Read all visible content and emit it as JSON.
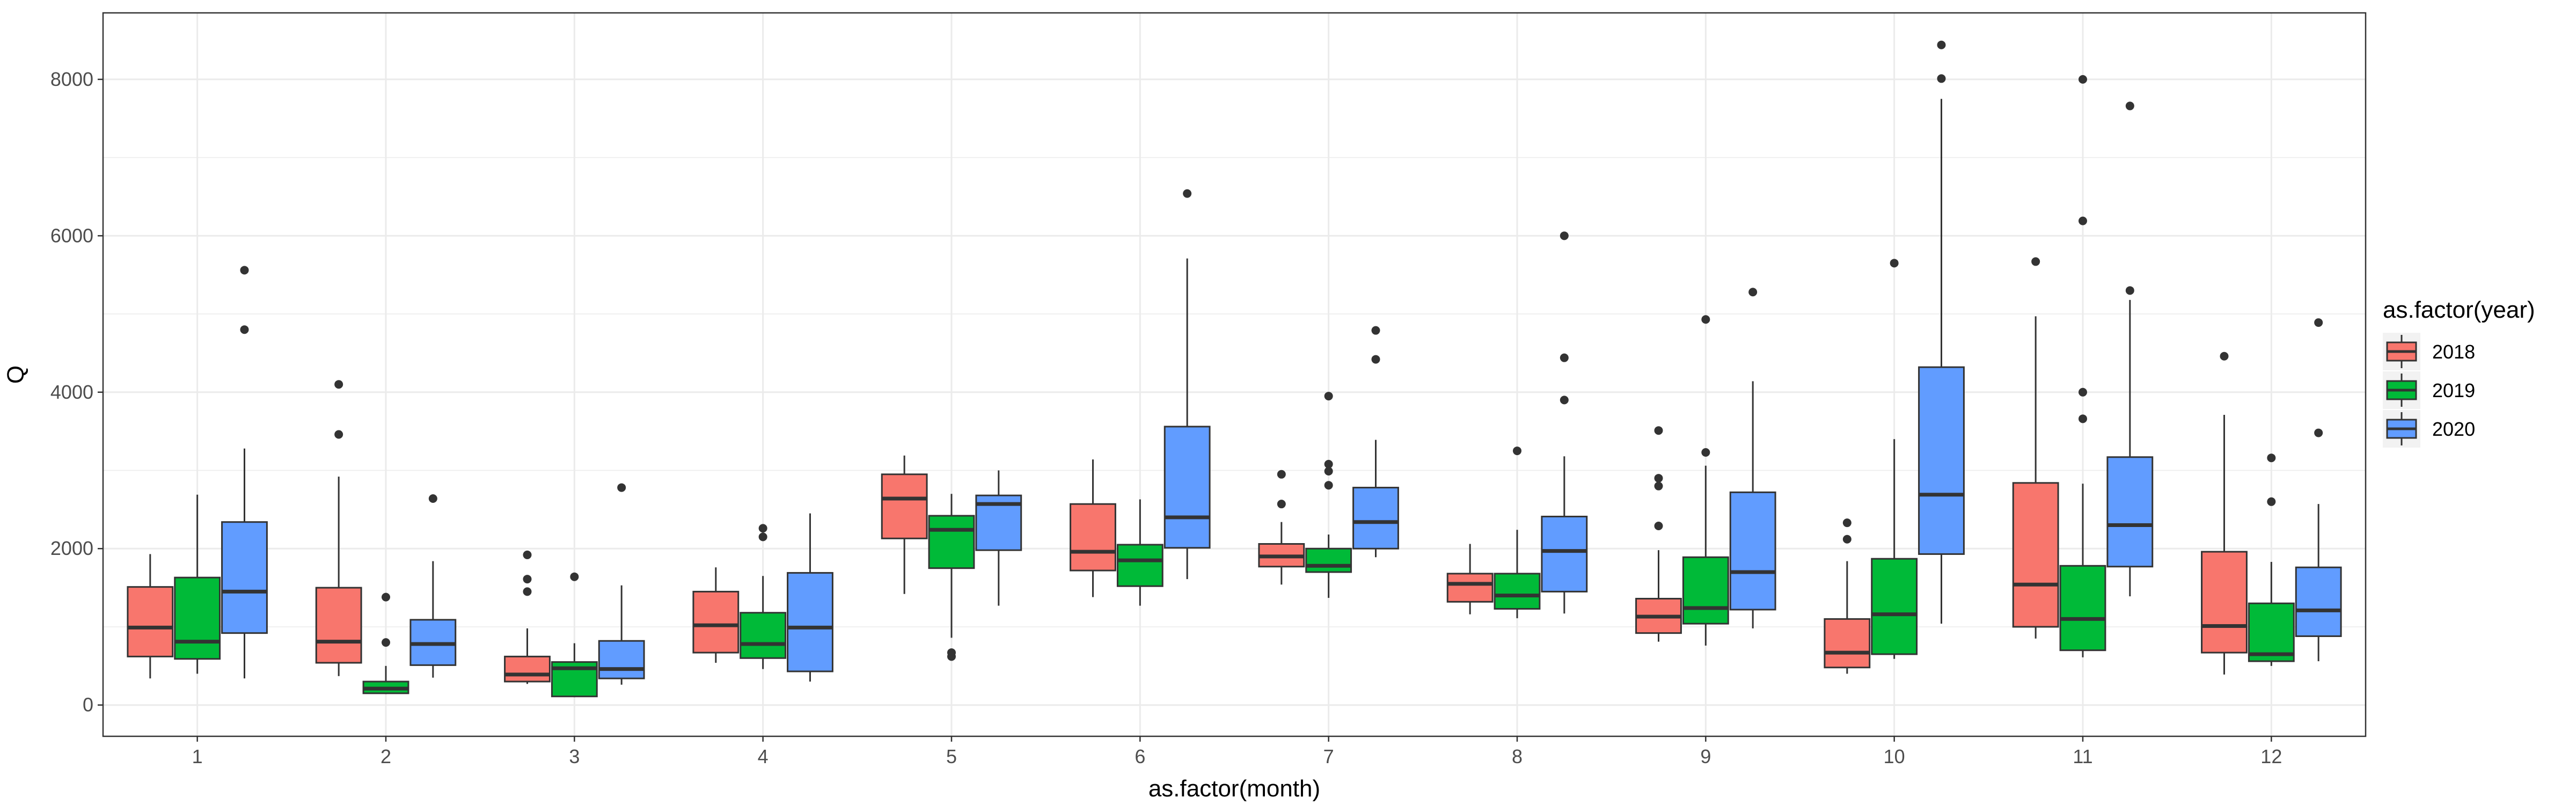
{
  "chart_data": {
    "type": "boxplot",
    "title": "",
    "xlabel": "as.factor(month)",
    "ylabel": "Q",
    "categories": [
      "1",
      "2",
      "3",
      "4",
      "5",
      "6",
      "7",
      "8",
      "9",
      "10",
      "11",
      "12"
    ],
    "ylim": [
      -400,
      8850
    ],
    "yticks": [
      0,
      2000,
      4000,
      6000,
      8000
    ],
    "y_tick_labels": [
      "0",
      "2000",
      "4000",
      "6000",
      "8000"
    ],
    "grid": true,
    "legend": {
      "title": "as.factor(year)",
      "position": "right"
    },
    "series": [
      {
        "name": "2018",
        "color": "#F8766D",
        "boxes": [
          {
            "min": 340,
            "q1": 620,
            "median": 990,
            "q3": 1510,
            "max": 1930,
            "outliers": []
          },
          {
            "min": 370,
            "q1": 540,
            "median": 810,
            "q3": 1500,
            "max": 2920,
            "outliers": [
              3460,
              4100
            ]
          },
          {
            "min": 270,
            "q1": 300,
            "median": 390,
            "q3": 620,
            "max": 980,
            "outliers": [
              1450,
              1610,
              1920
            ]
          },
          {
            "min": 540,
            "q1": 670,
            "median": 1020,
            "q3": 1450,
            "max": 1760,
            "outliers": []
          },
          {
            "min": 1420,
            "q1": 2130,
            "median": 2640,
            "q3": 2950,
            "max": 3190,
            "outliers": []
          },
          {
            "min": 1380,
            "q1": 1720,
            "median": 1960,
            "q3": 2570,
            "max": 3140,
            "outliers": []
          },
          {
            "min": 1540,
            "q1": 1770,
            "median": 1900,
            "q3": 2060,
            "max": 2340,
            "outliers": [
              2570,
              2950
            ]
          },
          {
            "min": 1160,
            "q1": 1320,
            "median": 1550,
            "q3": 1680,
            "max": 2060,
            "outliers": []
          },
          {
            "min": 810,
            "q1": 920,
            "median": 1130,
            "q3": 1360,
            "max": 1980,
            "outliers": [
              2290,
              2800,
              2900,
              3510
            ]
          },
          {
            "min": 400,
            "q1": 480,
            "median": 670,
            "q3": 1100,
            "max": 1840,
            "outliers": [
              2120,
              2330
            ]
          },
          {
            "min": 850,
            "q1": 1000,
            "median": 1540,
            "q3": 2840,
            "max": 4970,
            "outliers": [
              5670
            ]
          },
          {
            "min": 390,
            "q1": 670,
            "median": 1010,
            "q3": 1960,
            "max": 3710,
            "outliers": [
              4460
            ]
          }
        ]
      },
      {
        "name": "2019",
        "color": "#00BA38",
        "boxes": [
          {
            "min": 400,
            "q1": 590,
            "median": 810,
            "q3": 1630,
            "max": 2690,
            "outliers": []
          },
          {
            "min": 140,
            "q1": 150,
            "median": 210,
            "q3": 300,
            "max": 500,
            "outliers": [
              800,
              1380
            ]
          },
          {
            "min": 100,
            "q1": 110,
            "median": 470,
            "q3": 550,
            "max": 790,
            "outliers": [
              1640
            ]
          },
          {
            "min": 460,
            "q1": 600,
            "median": 780,
            "q3": 1180,
            "max": 1650,
            "outliers": [
              2150,
              2260
            ]
          },
          {
            "min": 860,
            "q1": 1750,
            "median": 2240,
            "q3": 2420,
            "max": 2700,
            "outliers": [
              620,
              670
            ]
          },
          {
            "min": 1270,
            "q1": 1520,
            "median": 1850,
            "q3": 2050,
            "max": 2630,
            "outliers": []
          },
          {
            "min": 1370,
            "q1": 1700,
            "median": 1780,
            "q3": 2000,
            "max": 2180,
            "outliers": [
              2810,
              2990,
              3080,
              3950
            ]
          },
          {
            "min": 1110,
            "q1": 1230,
            "median": 1400,
            "q3": 1680,
            "max": 2240,
            "outliers": [
              3250
            ]
          },
          {
            "min": 760,
            "q1": 1040,
            "median": 1240,
            "q3": 1890,
            "max": 3060,
            "outliers": [
              3230,
              4930
            ]
          },
          {
            "min": 590,
            "q1": 650,
            "median": 1160,
            "q3": 1870,
            "max": 3400,
            "outliers": [
              5650
            ]
          },
          {
            "min": 610,
            "q1": 700,
            "median": 1100,
            "q3": 1780,
            "max": 2830,
            "outliers": [
              3660,
              4000,
              6190,
              8000
            ]
          },
          {
            "min": 500,
            "q1": 560,
            "median": 650,
            "q3": 1300,
            "max": 1830,
            "outliers": [
              2600,
              3160
            ]
          }
        ]
      },
      {
        "name": "2020",
        "color": "#619CFF",
        "boxes": [
          {
            "min": 340,
            "q1": 920,
            "median": 1450,
            "q3": 2340,
            "max": 3280,
            "outliers": [
              4800,
              5560
            ]
          },
          {
            "min": 350,
            "q1": 510,
            "median": 780,
            "q3": 1090,
            "max": 1840,
            "outliers": [
              2640
            ]
          },
          {
            "min": 260,
            "q1": 340,
            "median": 460,
            "q3": 820,
            "max": 1530,
            "outliers": [
              2780
            ]
          },
          {
            "min": 300,
            "q1": 430,
            "median": 990,
            "q3": 1690,
            "max": 2450,
            "outliers": []
          },
          {
            "min": 1270,
            "q1": 1980,
            "median": 2570,
            "q3": 2680,
            "max": 3000,
            "outliers": []
          },
          {
            "min": 1610,
            "q1": 2010,
            "median": 2400,
            "q3": 3560,
            "max": 5710,
            "outliers": [
              6540
            ]
          },
          {
            "min": 1890,
            "q1": 2000,
            "median": 2340,
            "q3": 2780,
            "max": 3390,
            "outliers": [
              4420,
              4790
            ]
          },
          {
            "min": 1170,
            "q1": 1450,
            "median": 1970,
            "q3": 2410,
            "max": 3180,
            "outliers": [
              3900,
              4440,
              6000
            ]
          },
          {
            "min": 980,
            "q1": 1220,
            "median": 1700,
            "q3": 2720,
            "max": 4140,
            "outliers": [
              5280
            ]
          },
          {
            "min": 1040,
            "q1": 1930,
            "median": 2690,
            "q3": 4320,
            "max": 7750,
            "outliers": [
              8010,
              8440
            ]
          },
          {
            "min": 1390,
            "q1": 1770,
            "median": 2300,
            "q3": 3170,
            "max": 5180,
            "outliers": [
              5300,
              7660
            ]
          },
          {
            "min": 560,
            "q1": 880,
            "median": 1210,
            "q3": 1760,
            "max": 2570,
            "outliers": [
              3480,
              4890
            ]
          }
        ]
      }
    ]
  }
}
